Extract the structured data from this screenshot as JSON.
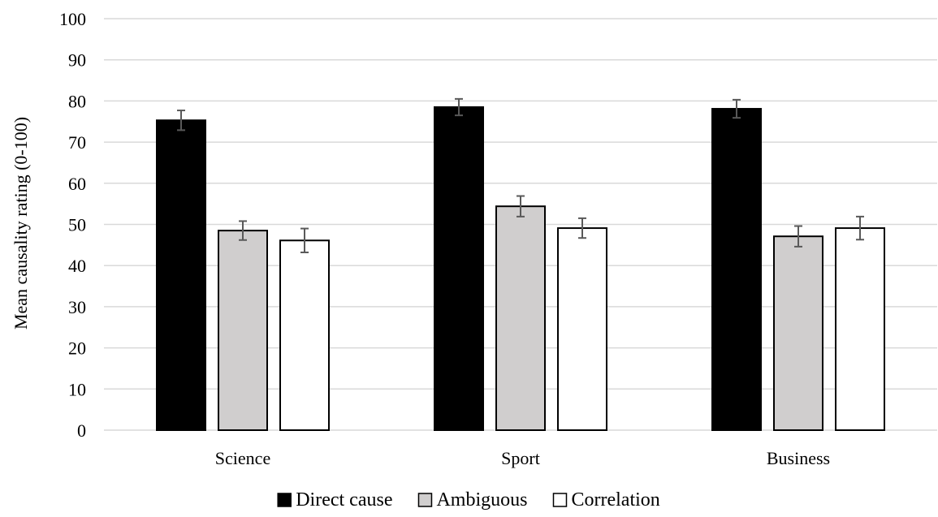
{
  "chart_data": {
    "type": "bar",
    "title": "",
    "xlabel": "",
    "ylabel": "Mean causality rating (0-100)",
    "ylim": [
      0,
      100
    ],
    "yticks": [
      0,
      10,
      20,
      30,
      40,
      50,
      60,
      70,
      80,
      90,
      100
    ],
    "grid": true,
    "legend_position": "bottom",
    "categories": [
      "Science",
      "Sport",
      "Business"
    ],
    "series": [
      {
        "name": "Direct cause",
        "color": "#000000",
        "values": [
          75.3,
          78.5,
          78.1
        ],
        "errors": [
          2.4,
          2.0,
          2.2
        ]
      },
      {
        "name": "Ambiguous",
        "color": "#d0cece",
        "values": [
          48.5,
          54.4,
          47.1
        ],
        "errors": [
          2.3,
          2.5,
          2.5
        ]
      },
      {
        "name": "Correlation",
        "color": "#ffffff",
        "values": [
          46.1,
          49.1,
          49.1
        ],
        "errors": [
          2.9,
          2.4,
          2.8
        ]
      }
    ]
  }
}
